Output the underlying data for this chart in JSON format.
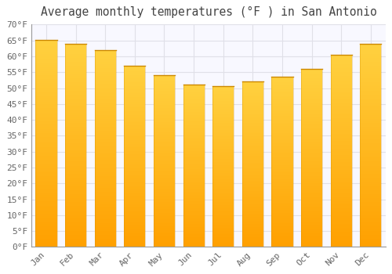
{
  "title": "Average monthly temperatures (°F ) in San Antonio",
  "months": [
    "Jan",
    "Feb",
    "Mar",
    "Apr",
    "May",
    "Jun",
    "Jul",
    "Aug",
    "Sep",
    "Oct",
    "Nov",
    "Dec"
  ],
  "values": [
    65.2,
    64.0,
    62.0,
    57.0,
    54.0,
    51.2,
    50.6,
    52.0,
    53.5,
    56.0,
    60.5,
    64.0
  ],
  "bar_color_bottom": "#FFA000",
  "bar_color_top": "#FFD040",
  "bar_edge_color": "#CC8800",
  "ylim": [
    0,
    70
  ],
  "ytick_step": 5,
  "background_color": "#FFFFFF",
  "plot_bg_color": "#F8F8FF",
  "grid_color": "#E0E0E8",
  "title_fontsize": 10.5,
  "tick_fontsize": 8,
  "bar_width": 0.72
}
